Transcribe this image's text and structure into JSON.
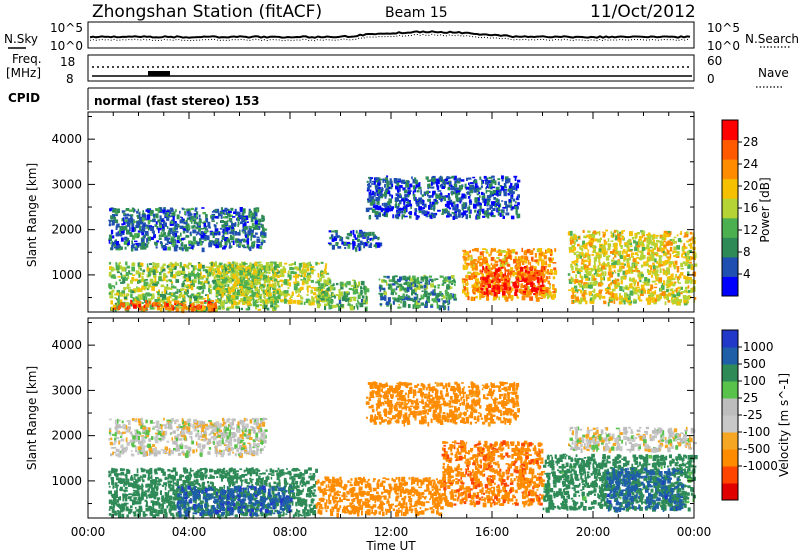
{
  "header": {
    "station": "Zhongshan Station (fitACF)",
    "beam": "Beam 15",
    "date": "11/Oct/2012"
  },
  "summary": {
    "left_top_label": "N.Sky",
    "right_top_label": "N.Search",
    "noise_ticks_left": [
      "10^5",
      "10^0"
    ],
    "noise_ticks_right": [
      "10^5",
      "10^0"
    ],
    "freq_label_1": "Freq.",
    "freq_label_2": "[MHz]",
    "freq_ticks": [
      "18",
      "8"
    ],
    "nave_ticks": [
      "60",
      "0"
    ],
    "nave_label": "Nave",
    "cpid_label": "CPID",
    "cpid_text": "normal (fast stereo) 153"
  },
  "colors": {
    "power_scale": [
      "#0000ff",
      "#1f4fb0",
      "#2e8b57",
      "#4caf50",
      "#b5d334",
      "#f5c000",
      "#ff8c00",
      "#ff5a00",
      "#ff0000"
    ],
    "velocity_scale": [
      "#e00000",
      "#ff4500",
      "#ff8c00",
      "#f5a623",
      "#c8c8c8",
      "#bdbdbd",
      "#58c24a",
      "#2e8b57",
      "#1e5fa8",
      "#2238c8"
    ]
  },
  "chart_data": [
    {
      "type": "heatmap",
      "title": "",
      "ylabel": "Slant Range [km]",
      "xlabel": "Time UT",
      "x_ticks": [
        "00:00",
        "04:00",
        "08:00",
        "12:00",
        "16:00",
        "20:00",
        "00:00"
      ],
      "xlim_hours": [
        0,
        24
      ],
      "ylim": [
        180,
        4600
      ],
      "y_ticks": [
        1000,
        2000,
        3000,
        4000
      ],
      "colorbar": {
        "label": "Power [dB]",
        "ticks": [
          "4",
          "8",
          "12",
          "16",
          "20",
          "24",
          "28"
        ],
        "range": [
          0,
          32
        ]
      },
      "echo_regions": [
        {
          "t0": 0.8,
          "t1": 7.5,
          "r0": 250,
          "r1": 1300,
          "value": 14
        },
        {
          "t0": 1.0,
          "t1": 5.0,
          "r0": 250,
          "r1": 450,
          "value": 26
        },
        {
          "t0": 5.0,
          "t1": 9.5,
          "r0": 400,
          "r1": 1300,
          "value": 16
        },
        {
          "t0": 9.0,
          "t1": 11.0,
          "r0": 300,
          "r1": 900,
          "value": 12
        },
        {
          "t0": 11.5,
          "t1": 14.5,
          "r0": 300,
          "r1": 1000,
          "value": 10
        },
        {
          "t0": 14.8,
          "t1": 18.5,
          "r0": 500,
          "r1": 1600,
          "value": 22
        },
        {
          "t0": 15.5,
          "t1": 18.0,
          "r0": 600,
          "r1": 1200,
          "value": 29
        },
        {
          "t0": 19.0,
          "t1": 24.0,
          "r0": 400,
          "r1": 2000,
          "value": 18
        },
        {
          "t0": 0.8,
          "t1": 7.0,
          "r0": 1600,
          "r1": 2500,
          "value": 7
        },
        {
          "t0": 9.5,
          "t1": 11.5,
          "r0": 1600,
          "r1": 2000,
          "value": 6
        },
        {
          "t0": 11.0,
          "t1": 17.0,
          "r0": 2300,
          "r1": 3200,
          "value": 5
        }
      ]
    },
    {
      "type": "heatmap",
      "title": "",
      "ylabel": "Slant Range [km]",
      "xlabel": "Time UT",
      "x_ticks": [
        "00:00",
        "04:00",
        "08:00",
        "12:00",
        "16:00",
        "20:00",
        "00:00"
      ],
      "xlim_hours": [
        0,
        24
      ],
      "ylim": [
        180,
        4600
      ],
      "y_ticks": [
        1000,
        2000,
        3000,
        4000
      ],
      "colorbar": {
        "label": "Velocity [m s^-1]",
        "ticks": [
          "1000",
          "500",
          "100",
          "25",
          "-25",
          "-100",
          "-500",
          "-1000"
        ]
      },
      "echo_regions": [
        {
          "t0": 0.8,
          "t1": 9.0,
          "r0": 250,
          "r1": 1300,
          "value": 300
        },
        {
          "t0": 3.5,
          "t1": 8.0,
          "r0": 300,
          "r1": 900,
          "value": 800
        },
        {
          "t0": 9.0,
          "t1": 14.0,
          "r0": 300,
          "r1": 1100,
          "value": -300
        },
        {
          "t0": 14.0,
          "t1": 18.0,
          "r0": 500,
          "r1": 1900,
          "value": -400
        },
        {
          "t0": 18.0,
          "t1": 24.0,
          "r0": 400,
          "r1": 1600,
          "value": 200
        },
        {
          "t0": 20.5,
          "t1": 23.5,
          "r0": 400,
          "r1": 1300,
          "value": 700
        },
        {
          "t0": 0.8,
          "t1": 7.0,
          "r0": 1600,
          "r1": 2400,
          "value": 0
        },
        {
          "t0": 19.0,
          "t1": 24.0,
          "r0": 1700,
          "r1": 2200,
          "value": 0
        },
        {
          "t0": 11.0,
          "t1": 17.0,
          "r0": 2300,
          "r1": 3200,
          "value": -200
        }
      ]
    }
  ]
}
